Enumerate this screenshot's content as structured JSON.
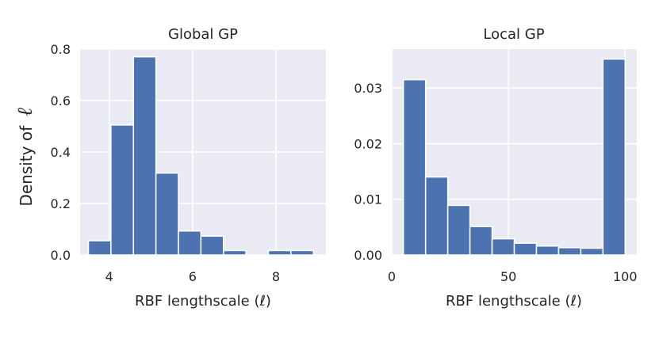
{
  "figure": {
    "ylabel_text": "Density of",
    "ylabel_symbol": "ℓ"
  },
  "colors": {
    "bar": "#4c72b0",
    "axes_bg": "#eaeaf2",
    "grid": "#ffffff"
  },
  "chart_data": [
    {
      "type": "bar",
      "title": "Global GP",
      "xlabel": "RBF lengthscale (ℓ)",
      "ylabel": "Density of ℓ",
      "grid": true,
      "xlim": [
        3.3,
        9.2
      ],
      "ylim": [
        0,
        0.8
      ],
      "xticks": [
        4,
        6,
        8
      ],
      "yticks": [
        0.0,
        0.2,
        0.4,
        0.6,
        0.8
      ],
      "ytick_decimals": 1,
      "bin_edges": [
        3.5,
        4.04,
        4.58,
        5.12,
        5.66,
        6.2,
        6.74,
        7.28,
        7.82,
        8.36,
        8.9
      ],
      "values": [
        0.055,
        0.505,
        0.77,
        0.318,
        0.093,
        0.073,
        0.017,
        0.0,
        0.017,
        0.017
      ]
    },
    {
      "type": "bar",
      "title": "Local GP",
      "xlabel": "RBF lengthscale (ℓ)",
      "ylabel": "",
      "grid": true,
      "xlim": [
        0,
        105
      ],
      "ylim": [
        0,
        0.037
      ],
      "xticks": [
        0,
        50,
        100
      ],
      "yticks": [
        0.0,
        0.01,
        0.02,
        0.03
      ],
      "ytick_decimals": 2,
      "bin_edges": [
        5,
        14.5,
        24,
        33.5,
        43,
        52.5,
        62,
        71.5,
        81,
        90.5,
        100
      ],
      "values": [
        0.0315,
        0.014,
        0.0089,
        0.0051,
        0.0029,
        0.0021,
        0.0016,
        0.0013,
        0.0012,
        0.0352
      ]
    }
  ]
}
